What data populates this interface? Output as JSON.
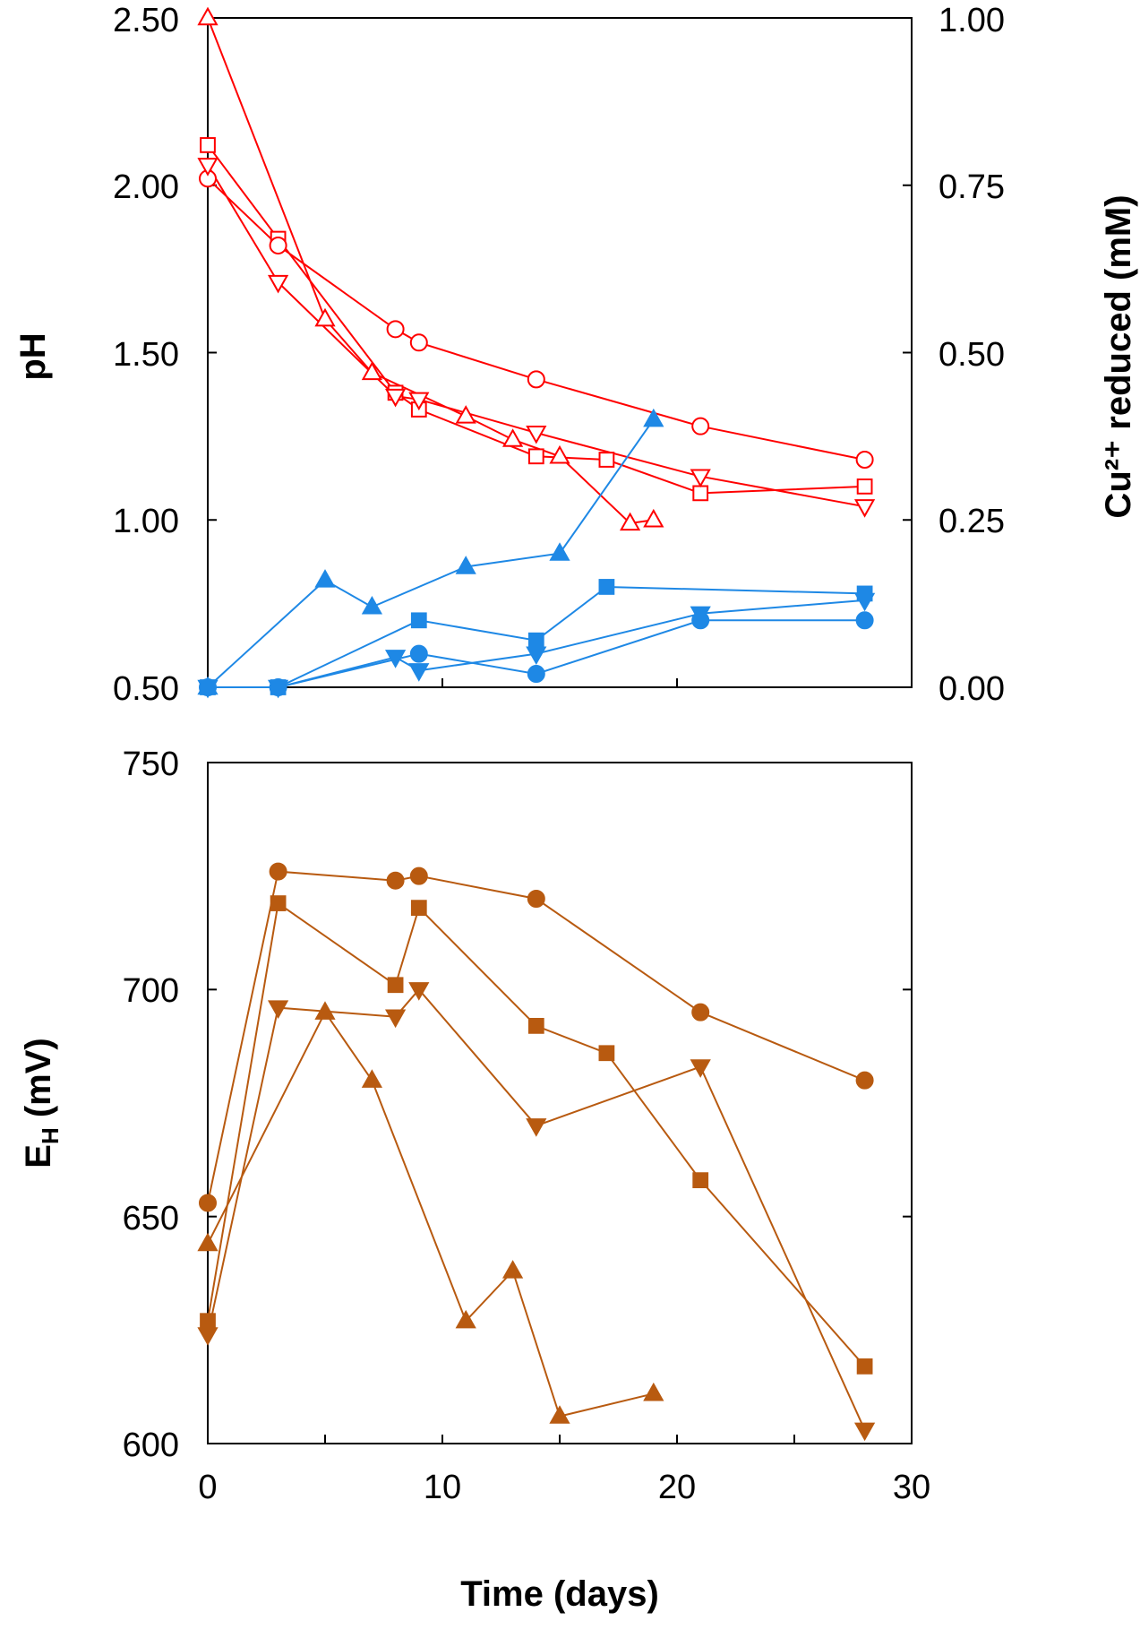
{
  "colors": {
    "ph": "#ff0000",
    "cu": "#1e88e5",
    "eh": "#b85a10",
    "axis": "#000000"
  },
  "chart_data": [
    {
      "id": "top",
      "type": "line",
      "xlabel": "",
      "ylabel": "pH",
      "y2label": "Cu²⁺ reduced (mM)",
      "xlim": [
        0,
        30
      ],
      "ylim": [
        0.5,
        2.5
      ],
      "y2lim": [
        0,
        1
      ],
      "xticks": [
        0,
        10,
        20,
        30
      ],
      "yticks": [
        "0.50",
        "1.00",
        "1.50",
        "2.00",
        "2.50"
      ],
      "y2ticks": [
        "0.00",
        "0.25",
        "0.50",
        "0.75",
        "1.00"
      ],
      "series": [
        {
          "name": "pH square",
          "axis": "left",
          "marker": "square",
          "filled": false,
          "color": "ph",
          "points": [
            [
              0,
              2.12
            ],
            [
              3,
              1.84
            ],
            [
              8,
              1.38
            ],
            [
              9,
              1.33
            ],
            [
              14,
              1.19
            ],
            [
              17,
              1.18
            ],
            [
              21,
              1.08
            ],
            [
              28,
              1.1
            ]
          ]
        },
        {
          "name": "pH circle",
          "axis": "left",
          "marker": "circle",
          "filled": false,
          "color": "ph",
          "points": [
            [
              0,
              2.02
            ],
            [
              3,
              1.82
            ],
            [
              8,
              1.57
            ],
            [
              9,
              1.53
            ],
            [
              14,
              1.42
            ],
            [
              21,
              1.28
            ],
            [
              28,
              1.18
            ]
          ]
        },
        {
          "name": "pH triangle-down",
          "axis": "left",
          "marker": "triangle-down",
          "filled": false,
          "color": "ph",
          "points": [
            [
              0,
              2.06
            ],
            [
              3,
              1.71
            ],
            [
              8,
              1.37
            ],
            [
              9,
              1.36
            ],
            [
              14,
              1.26
            ],
            [
              21,
              1.13
            ],
            [
              28,
              1.04
            ]
          ]
        },
        {
          "name": "pH triangle-up",
          "axis": "left",
          "marker": "triangle-up",
          "filled": false,
          "color": "ph",
          "points": [
            [
              0,
              2.5
            ],
            [
              5,
              1.6
            ],
            [
              7,
              1.44
            ],
            [
              11,
              1.31
            ],
            [
              13,
              1.24
            ],
            [
              15,
              1.19
            ],
            [
              18,
              0.99
            ],
            [
              19,
              1.0
            ]
          ]
        },
        {
          "name": "Cu triangle-up",
          "axis": "right",
          "marker": "triangle-up",
          "filled": true,
          "color": "cu",
          "points": [
            [
              0,
              0.0
            ],
            [
              5,
              0.16
            ],
            [
              7,
              0.12
            ],
            [
              11,
              0.18
            ],
            [
              15,
              0.2
            ],
            [
              19,
              0.4
            ]
          ]
        },
        {
          "name": "Cu square",
          "axis": "right",
          "marker": "square",
          "filled": true,
          "color": "cu",
          "points": [
            [
              0,
              0.0
            ],
            [
              3,
              0.0
            ],
            [
              9,
              0.1
            ],
            [
              14,
              0.07
            ],
            [
              17,
              0.15
            ],
            [
              28,
              0.14
            ]
          ]
        },
        {
          "name": "Cu triangle-down",
          "axis": "right",
          "marker": "triangle-down",
          "filled": true,
          "color": "cu",
          "points": [
            [
              0,
              0.0
            ],
            [
              3,
              0.0
            ],
            [
              8,
              0.045
            ],
            [
              9,
              0.025
            ],
            [
              14,
              0.05
            ],
            [
              21,
              0.11
            ],
            [
              28,
              0.13
            ]
          ]
        },
        {
          "name": "Cu circle",
          "axis": "right",
          "marker": "circle",
          "filled": true,
          "color": "cu",
          "points": [
            [
              0,
              0.0
            ],
            [
              3,
              0.0
            ],
            [
              9,
              0.05
            ],
            [
              14,
              0.02
            ],
            [
              21,
              0.1
            ],
            [
              28,
              0.1
            ]
          ]
        }
      ]
    },
    {
      "id": "bottom",
      "type": "line",
      "xlabel": "Time (days)",
      "ylabel": "E",
      "ylabel_sub": "H",
      "ylabel_suffix": " (mV)",
      "xlim": [
        0,
        30
      ],
      "ylim": [
        600,
        750
      ],
      "xticks": [
        "0",
        "10",
        "20",
        "30"
      ],
      "yticks": [
        "600",
        "650",
        "700",
        "750"
      ],
      "series": [
        {
          "name": "EH circle",
          "marker": "circle",
          "filled": true,
          "color": "eh",
          "points": [
            [
              0,
              653
            ],
            [
              3,
              726
            ],
            [
              8,
              724
            ],
            [
              9,
              725
            ],
            [
              14,
              720
            ],
            [
              21,
              695
            ],
            [
              28,
              680
            ]
          ]
        },
        {
          "name": "EH square",
          "marker": "square",
          "filled": true,
          "color": "eh",
          "points": [
            [
              0,
              627
            ],
            [
              3,
              719
            ],
            [
              8,
              701
            ],
            [
              9,
              718
            ],
            [
              14,
              692
            ],
            [
              17,
              686
            ],
            [
              21,
              658
            ],
            [
              28,
              617
            ]
          ]
        },
        {
          "name": "EH triangle-down",
          "marker": "triangle-down",
          "filled": true,
          "color": "eh",
          "points": [
            [
              0,
              624
            ],
            [
              3,
              696
            ],
            [
              8,
              694
            ],
            [
              9,
              700
            ],
            [
              14,
              670
            ],
            [
              21,
              683
            ],
            [
              28,
              603
            ]
          ]
        },
        {
          "name": "EH triangle-up",
          "marker": "triangle-up",
          "filled": true,
          "color": "eh",
          "points": [
            [
              0,
              644
            ],
            [
              5,
              695
            ],
            [
              7,
              680
            ],
            [
              11,
              627
            ],
            [
              13,
              638
            ],
            [
              15,
              606
            ],
            [
              19,
              611
            ]
          ]
        }
      ]
    }
  ]
}
